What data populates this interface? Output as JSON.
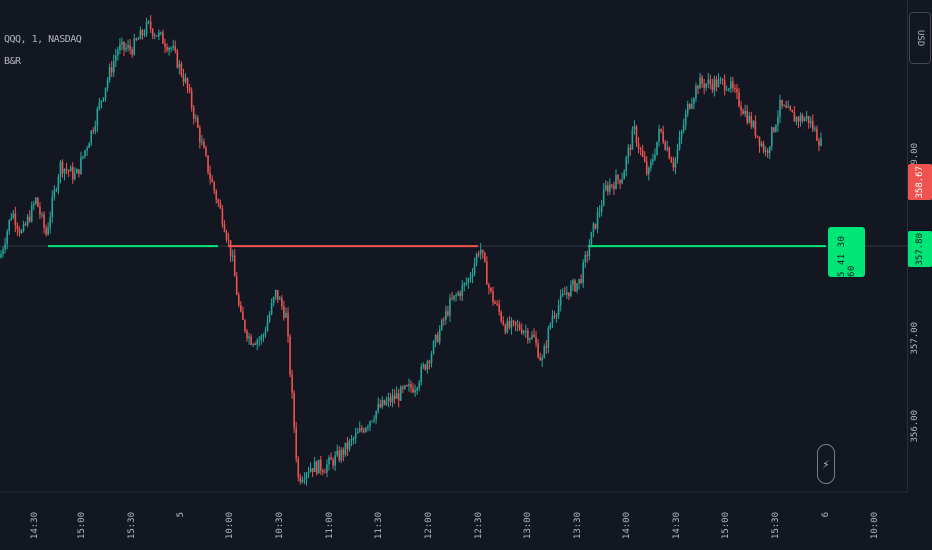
{
  "legend": {
    "symbol": "QQQ, 1, NASDAQ",
    "indicator": "B&R"
  },
  "currency": "USD",
  "price_scale_labels": [
    "359.00",
    "357.00",
    "356.00"
  ],
  "last_price": {
    "label": "358.67",
    "value": 358.67,
    "color": "#ef5350"
  },
  "level_price": {
    "label": "357.80",
    "value": 357.8,
    "color": "#00e676"
  },
  "timer": "5 41 30 60",
  "time_labels": [
    "14:30",
    "15:00",
    "15:30",
    "5",
    "10:00",
    "10:30",
    "11:00",
    "11:30",
    "12:00",
    "12:30",
    "13:00",
    "13:30",
    "14:00",
    "14:30",
    "15:00",
    "15:30",
    "6",
    "10:00"
  ],
  "colors": {
    "background": "#131722",
    "up": "#26a69a",
    "down": "#ef5350",
    "support": "#00e676",
    "resistance": "#ef5350",
    "grid_axis": "#2a2e39"
  },
  "chart_data": {
    "type": "candlestick",
    "title": "QQQ, 1, NASDAQ",
    "ylim": [
      355.7,
      359.85
    ],
    "y_ticks": [
      356,
      357,
      359
    ],
    "x_categories": [
      "14:30",
      "15:00",
      "15:30",
      "5",
      "10:00",
      "10:30",
      "11:00",
      "11:30",
      "12:00",
      "12:30",
      "13:00",
      "13:30",
      "14:00",
      "14:30",
      "15:00",
      "15:30",
      "6",
      "10:00"
    ],
    "path": [
      [
        0,
        357.7
      ],
      [
        12,
        358.1
      ],
      [
        22,
        357.9
      ],
      [
        36,
        358.2
      ],
      [
        46,
        357.9
      ],
      [
        60,
        358.5
      ],
      [
        76,
        358.4
      ],
      [
        92,
        358.8
      ],
      [
        106,
        359.2
      ],
      [
        118,
        359.5
      ],
      [
        132,
        359.5
      ],
      [
        148,
        359.7
      ],
      [
        160,
        359.6
      ],
      [
        172,
        359.5
      ],
      [
        186,
        359.2
      ],
      [
        198,
        358.8
      ],
      [
        210,
        358.4
      ],
      [
        224,
        358.0
      ],
      [
        232,
        357.7
      ],
      [
        240,
        357.2
      ],
      [
        250,
        357.0
      ],
      [
        262,
        357.0
      ],
      [
        276,
        357.4
      ],
      [
        286,
        357.2
      ],
      [
        292,
        356.5
      ],
      [
        298,
        355.8
      ],
      [
        310,
        355.9
      ],
      [
        325,
        355.9
      ],
      [
        340,
        356.0
      ],
      [
        360,
        356.2
      ],
      [
        378,
        356.4
      ],
      [
        395,
        356.5
      ],
      [
        415,
        356.6
      ],
      [
        432,
        356.9
      ],
      [
        450,
        357.3
      ],
      [
        468,
        357.5
      ],
      [
        480,
        357.8
      ],
      [
        490,
        357.4
      ],
      [
        506,
        357.1
      ],
      [
        522,
        357.1
      ],
      [
        534,
        357.0
      ],
      [
        542,
        356.8
      ],
      [
        552,
        357.2
      ],
      [
        566,
        357.4
      ],
      [
        580,
        357.5
      ],
      [
        592,
        357.9
      ],
      [
        606,
        358.3
      ],
      [
        622,
        358.4
      ],
      [
        634,
        358.8
      ],
      [
        648,
        358.4
      ],
      [
        660,
        358.8
      ],
      [
        674,
        358.5
      ],
      [
        688,
        359.0
      ],
      [
        698,
        359.2
      ],
      [
        712,
        359.2
      ],
      [
        728,
        359.2
      ],
      [
        742,
        359.0
      ],
      [
        755,
        358.8
      ],
      [
        766,
        358.6
      ],
      [
        780,
        359.0
      ],
      [
        795,
        358.9
      ],
      [
        808,
        358.9
      ],
      [
        822,
        358.67
      ]
    ],
    "levels": [
      {
        "kind": "support",
        "price": 357.8,
        "x_from": 48,
        "x_to": 218
      },
      {
        "kind": "resistance",
        "price": 357.8,
        "x_from": 228,
        "x_to": 478
      },
      {
        "kind": "support",
        "price": 357.8,
        "x_from": 588,
        "x_to": 826
      }
    ]
  }
}
